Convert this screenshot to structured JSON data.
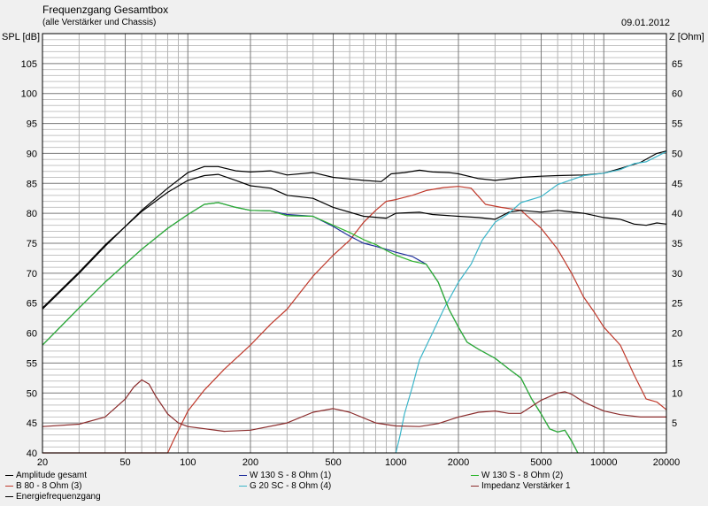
{
  "header": {
    "title": "Frequenzgang Gesamtbox",
    "subtitle": "(alle Verstärker und Chassis)",
    "date": "09.01.2012",
    "y_left_label": "SPL [dB]",
    "y_right_label": "Z [Ohm]"
  },
  "chart_data": {
    "type": "line",
    "title": "Frequenzgang Gesamtbox",
    "subtitle": "(alle Verstärker und Chassis)",
    "x_scale": "log",
    "xlim": [
      20,
      20000
    ],
    "x_ticks": [
      20,
      50,
      100,
      200,
      500,
      1000,
      2000,
      5000,
      10000,
      20000
    ],
    "ylim": [
      40,
      110
    ],
    "y_ticks": [
      40,
      45,
      50,
      55,
      60,
      65,
      70,
      75,
      80,
      85,
      90,
      95,
      100,
      105
    ],
    "ylabel": "SPL [dB]",
    "y2lim": [
      0,
      70
    ],
    "y2_ticks": [
      5,
      10,
      15,
      20,
      25,
      30,
      35,
      40,
      45,
      50,
      55,
      60,
      65
    ],
    "y2label": "Z [Ohm]",
    "grid": true,
    "legend_position": "bottom",
    "series": [
      {
        "name": "Amplitude gesamt",
        "color": "#000000",
        "axis": "left",
        "points": [
          [
            20,
            64
          ],
          [
            30,
            70
          ],
          [
            40,
            74.5
          ],
          [
            60,
            80.5
          ],
          [
            80,
            84.2
          ],
          [
            100,
            86.8
          ],
          [
            120,
            87.8
          ],
          [
            140,
            87.8
          ],
          [
            170,
            87.1
          ],
          [
            200,
            86.9
          ],
          [
            250,
            87.1
          ],
          [
            300,
            86.4
          ],
          [
            400,
            86.8
          ],
          [
            500,
            86.0
          ],
          [
            700,
            85.5
          ],
          [
            850,
            85.3
          ],
          [
            950,
            86.6
          ],
          [
            1100,
            86.8
          ],
          [
            1300,
            87.2
          ],
          [
            1500,
            86.9
          ],
          [
            1800,
            86.8
          ],
          [
            2000,
            86.6
          ],
          [
            2500,
            85.8
          ],
          [
            3000,
            85.5
          ],
          [
            4000,
            86.0
          ],
          [
            5000,
            86.2
          ],
          [
            6000,
            86.3
          ],
          [
            8000,
            86.4
          ],
          [
            10000,
            86.7
          ],
          [
            12000,
            87.5
          ],
          [
            15000,
            88.5
          ],
          [
            18000,
            90.0
          ],
          [
            20000,
            90.4
          ]
        ]
      },
      {
        "name": "B 80 - 8 Ohm (3)",
        "color": "#c0392b",
        "axis": "left",
        "points": [
          [
            20,
            40
          ],
          [
            80,
            40
          ],
          [
            85,
            42
          ],
          [
            100,
            47
          ],
          [
            120,
            50.5
          ],
          [
            150,
            54
          ],
          [
            200,
            58
          ],
          [
            250,
            61.5
          ],
          [
            300,
            64
          ],
          [
            400,
            69.5
          ],
          [
            500,
            73
          ],
          [
            600,
            75.5
          ],
          [
            700,
            78.5
          ],
          [
            800,
            80.5
          ],
          [
            900,
            82
          ],
          [
            1000,
            82.3
          ],
          [
            1200,
            83
          ],
          [
            1400,
            83.8
          ],
          [
            1700,
            84.3
          ],
          [
            2000,
            84.5
          ],
          [
            2300,
            84.2
          ],
          [
            2700,
            81.5
          ],
          [
            3200,
            81
          ],
          [
            4000,
            80.5
          ],
          [
            5000,
            77.5
          ],
          [
            6000,
            74
          ],
          [
            7000,
            70
          ],
          [
            8000,
            66
          ],
          [
            9000,
            63.5
          ],
          [
            10000,
            61
          ],
          [
            12000,
            58
          ],
          [
            14000,
            53
          ],
          [
            16000,
            49
          ],
          [
            18000,
            48.5
          ],
          [
            20000,
            47.2
          ]
        ]
      },
      {
        "name": "Energiefrequenzgang",
        "color": "#000000",
        "axis": "left",
        "points": [
          [
            20,
            64.2
          ],
          [
            30,
            70.2
          ],
          [
            40,
            74.7
          ],
          [
            60,
            80.3
          ],
          [
            80,
            83.5
          ],
          [
            100,
            85.5
          ],
          [
            120,
            86.3
          ],
          [
            140,
            86.5
          ],
          [
            170,
            85.5
          ],
          [
            200,
            84.6
          ],
          [
            250,
            84.2
          ],
          [
            300,
            83.0
          ],
          [
            400,
            82.5
          ],
          [
            500,
            81.0
          ],
          [
            700,
            79.5
          ],
          [
            900,
            79.2
          ],
          [
            1000,
            80.0
          ],
          [
            1300,
            80.2
          ],
          [
            1500,
            79.8
          ],
          [
            2000,
            79.5
          ],
          [
            2500,
            79.3
          ],
          [
            3000,
            79.0
          ],
          [
            3500,
            80.2
          ],
          [
            4000,
            80.5
          ],
          [
            5000,
            80.2
          ],
          [
            6000,
            80.5
          ],
          [
            8000,
            80.0
          ],
          [
            10000,
            79.3
          ],
          [
            12000,
            79.0
          ],
          [
            14000,
            78.2
          ],
          [
            16000,
            78.0
          ],
          [
            18000,
            78.4
          ],
          [
            20000,
            78.2
          ]
        ]
      },
      {
        "name": "W 130 S - 8 Ohm (1)",
        "color": "#1f2f9c",
        "axis": "left",
        "points": [
          [
            20,
            58
          ],
          [
            30,
            64.2
          ],
          [
            40,
            68.5
          ],
          [
            60,
            74
          ],
          [
            80,
            77.5
          ],
          [
            100,
            79.8
          ],
          [
            120,
            81.5
          ],
          [
            140,
            81.8
          ],
          [
            170,
            81.0
          ],
          [
            200,
            80.5
          ],
          [
            250,
            80.4
          ],
          [
            300,
            79.8
          ],
          [
            400,
            79.5
          ],
          [
            500,
            77.8
          ],
          [
            600,
            76.2
          ],
          [
            700,
            75.0
          ],
          [
            800,
            74.5
          ],
          [
            900,
            74.0
          ],
          [
            1000,
            73.5
          ],
          [
            1200,
            72.8
          ],
          [
            1400,
            71.5
          ],
          [
            1600,
            68.5
          ],
          [
            1800,
            64.0
          ],
          [
            2000,
            61.0
          ],
          [
            2200,
            58.5
          ],
          [
            2500,
            57.3
          ],
          [
            3000,
            55.8
          ],
          [
            3500,
            54.0
          ],
          [
            4000,
            52.5
          ],
          [
            4500,
            49.0
          ],
          [
            5000,
            46.5
          ],
          [
            5500,
            44.0
          ],
          [
            6000,
            43.5
          ],
          [
            6500,
            43.8
          ],
          [
            7000,
            42.0
          ],
          [
            7500,
            40.0
          ]
        ]
      },
      {
        "name": "G 20 SC - 8 Ohm (4)",
        "color": "#3bb5c9",
        "axis": "left",
        "points": [
          [
            1000,
            40
          ],
          [
            1050,
            43
          ],
          [
            1100,
            46.5
          ],
          [
            1200,
            51
          ],
          [
            1300,
            55.5
          ],
          [
            1500,
            60
          ],
          [
            1700,
            64
          ],
          [
            2000,
            68.5
          ],
          [
            2300,
            71.5
          ],
          [
            2600,
            75.5
          ],
          [
            3000,
            78.5
          ],
          [
            3500,
            80
          ],
          [
            4000,
            81.8
          ],
          [
            5000,
            82.8
          ],
          [
            6000,
            84.8
          ],
          [
            7000,
            85.6
          ],
          [
            8000,
            86.3
          ],
          [
            10000,
            86.7
          ],
          [
            12000,
            87.3
          ],
          [
            14000,
            88.3
          ],
          [
            16000,
            88.6
          ],
          [
            18000,
            89.5
          ],
          [
            20000,
            90.3
          ]
        ]
      },
      {
        "name": "W 130 S - 8 Ohm (2)",
        "color": "#2db52d",
        "axis": "left",
        "points": [
          [
            20,
            58
          ],
          [
            30,
            64.2
          ],
          [
            40,
            68.5
          ],
          [
            60,
            74
          ],
          [
            80,
            77.5
          ],
          [
            100,
            79.8
          ],
          [
            120,
            81.5
          ],
          [
            140,
            81.8
          ],
          [
            170,
            81.0
          ],
          [
            200,
            80.5
          ],
          [
            250,
            80.4
          ],
          [
            300,
            79.6
          ],
          [
            400,
            79.5
          ],
          [
            500,
            78.0
          ],
          [
            600,
            76.8
          ],
          [
            700,
            75.6
          ],
          [
            800,
            74.8
          ],
          [
            900,
            73.8
          ],
          [
            1000,
            73.0
          ],
          [
            1200,
            72.0
          ],
          [
            1400,
            71.5
          ],
          [
            1600,
            68.5
          ],
          [
            1800,
            64.0
          ],
          [
            2000,
            61.0
          ],
          [
            2200,
            58.5
          ],
          [
            2500,
            57.3
          ],
          [
            3000,
            55.8
          ],
          [
            3500,
            54.0
          ],
          [
            4000,
            52.5
          ],
          [
            4500,
            49.0
          ],
          [
            5000,
            46.5
          ],
          [
            5500,
            44.0
          ],
          [
            6000,
            43.5
          ],
          [
            6500,
            43.8
          ],
          [
            7000,
            42.0
          ],
          [
            7500,
            40.0
          ]
        ]
      },
      {
        "name": "Impedanz Verstärker 1",
        "color": "#8b2c2c",
        "axis": "right",
        "points": [
          [
            20,
            4.4
          ],
          [
            30,
            4.8
          ],
          [
            40,
            6.0
          ],
          [
            50,
            9.0
          ],
          [
            55,
            11.0
          ],
          [
            60,
            12.2
          ],
          [
            65,
            11.5
          ],
          [
            70,
            9.5
          ],
          [
            80,
            6.5
          ],
          [
            90,
            5.0
          ],
          [
            100,
            4.4
          ],
          [
            150,
            3.6
          ],
          [
            200,
            3.8
          ],
          [
            300,
            5.0
          ],
          [
            400,
            6.8
          ],
          [
            500,
            7.4
          ],
          [
            600,
            6.8
          ],
          [
            800,
            5.0
          ],
          [
            1000,
            4.5
          ],
          [
            1300,
            4.4
          ],
          [
            1600,
            4.9
          ],
          [
            2000,
            6.0
          ],
          [
            2500,
            6.8
          ],
          [
            3000,
            7.0
          ],
          [
            3500,
            6.6
          ],
          [
            4000,
            6.6
          ],
          [
            5000,
            8.8
          ],
          [
            6000,
            10.0
          ],
          [
            6500,
            10.2
          ],
          [
            7000,
            9.8
          ],
          [
            8000,
            8.5
          ],
          [
            10000,
            7.0
          ],
          [
            12000,
            6.4
          ],
          [
            15000,
            6.0
          ],
          [
            20000,
            6.0
          ]
        ]
      }
    ]
  },
  "legend": [
    {
      "label": "Amplitude gesamt",
      "color": "#000000"
    },
    {
      "label": "W 130 S - 8 Ohm (1)",
      "color": "#1f2f9c"
    },
    {
      "label": "W 130 S - 8 Ohm (2)",
      "color": "#2db52d"
    },
    {
      "label": "B 80 - 8 Ohm (3)",
      "color": "#c0392b"
    },
    {
      "label": "G 20 SC - 8 Ohm (4)",
      "color": "#3bb5c9"
    },
    {
      "label": "Impedanz Verstärker 1",
      "color": "#8b2c2c"
    },
    {
      "label": "Energiefrequenzgang",
      "color": "#000000"
    }
  ]
}
